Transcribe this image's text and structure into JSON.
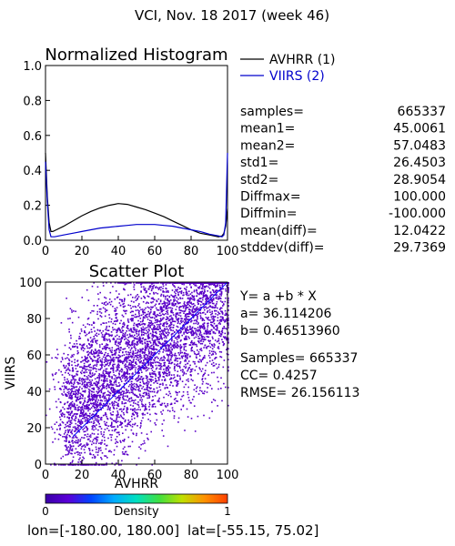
{
  "header": {
    "title": "VCI,  Nov. 18 2017 (week 46)"
  },
  "footer": {
    "lon_label": "lon=",
    "lon_range": "[-180.00, 180.00]",
    "lat_label": "lat=",
    "lat_range": "[-55.15, 75.02]"
  },
  "stats_hist": [
    {
      "label": "samples=",
      "value": "665337"
    },
    {
      "label": "mean1=",
      "value": "45.0061"
    },
    {
      "label": "mean2=",
      "value": "57.0483"
    },
    {
      "label": "std1=",
      "value": "26.4503"
    },
    {
      "label": "std2=",
      "value": "28.9054"
    },
    {
      "label": "Diffmax=",
      "value": "100.000"
    },
    {
      "label": "Diffmin=",
      "value": "-100.000"
    },
    {
      "label": "mean(diff)=",
      "value": "12.0422"
    },
    {
      "label": "stddev(diff)=",
      "value": "29.7369"
    }
  ],
  "stats_scatter": {
    "equation": "Y= a +b * X",
    "a": "a= 36.114206",
    "b": "b= 0.46513960",
    "samples": "Samples= 665337",
    "cc": "CC=  0.4257",
    "rmse": "RMSE= 26.156113"
  },
  "colorbar": {
    "label": "Density",
    "min_label": "0",
    "max_label": "1",
    "colors": [
      "#3a00a8",
      "#5a00d8",
      "#0044ff",
      "#00aaff",
      "#00e0c0",
      "#40e040",
      "#c0e000",
      "#ff9000",
      "#ff4000"
    ]
  },
  "chart_data": [
    {
      "type": "line",
      "title": "Normalized Histogram",
      "xlim": [
        0,
        100
      ],
      "ylim": [
        0,
        1.0
      ],
      "xticks": [
        "0",
        "20",
        "40",
        "60",
        "80",
        "100"
      ],
      "yticks": [
        "0.0",
        "0.2",
        "0.4",
        "0.6",
        "0.8",
        "1.0"
      ],
      "series": [
        {
          "name": "AVHRR (1)",
          "color": "#000000",
          "x": [
            0,
            1,
            2,
            3,
            4,
            6,
            10,
            15,
            20,
            25,
            30,
            35,
            40,
            45,
            50,
            55,
            60,
            65,
            70,
            75,
            80,
            85,
            90,
            95,
            97,
            98,
            99,
            100
          ],
          "y": [
            0.5,
            0.25,
            0.1,
            0.05,
            0.05,
            0.06,
            0.08,
            0.11,
            0.14,
            0.165,
            0.185,
            0.2,
            0.21,
            0.205,
            0.19,
            0.175,
            0.155,
            0.135,
            0.11,
            0.085,
            0.06,
            0.04,
            0.03,
            0.02,
            0.025,
            0.04,
            0.08,
            0.18
          ]
        },
        {
          "name": "VIIRS (2)",
          "color": "#0000cc",
          "x": [
            0,
            1,
            2,
            3,
            5,
            10,
            15,
            20,
            25,
            30,
            35,
            40,
            45,
            50,
            55,
            60,
            65,
            70,
            75,
            80,
            85,
            90,
            95,
            97,
            98,
            99,
            100
          ],
          "y": [
            0.45,
            0.22,
            0.06,
            0.02,
            0.02,
            0.03,
            0.04,
            0.05,
            0.06,
            0.07,
            0.075,
            0.08,
            0.085,
            0.09,
            0.09,
            0.09,
            0.085,
            0.08,
            0.07,
            0.06,
            0.05,
            0.035,
            0.025,
            0.02,
            0.03,
            0.1,
            0.5
          ]
        }
      ]
    },
    {
      "type": "scatter",
      "title": "Scatter Plot",
      "xlabel": "AVHRR",
      "ylabel": "VIIRS",
      "xlim": [
        0,
        100
      ],
      "ylim": [
        0,
        100
      ],
      "xticks": [
        "0",
        "20",
        "40",
        "60",
        "80",
        "100"
      ],
      "yticks": [
        "0",
        "20",
        "40",
        "60",
        "80",
        "100"
      ],
      "regression": {
        "a": 36.114206,
        "b": 0.4651396
      },
      "point_color": "#5a00c8",
      "diagonal_color": "#0000ff"
    }
  ]
}
